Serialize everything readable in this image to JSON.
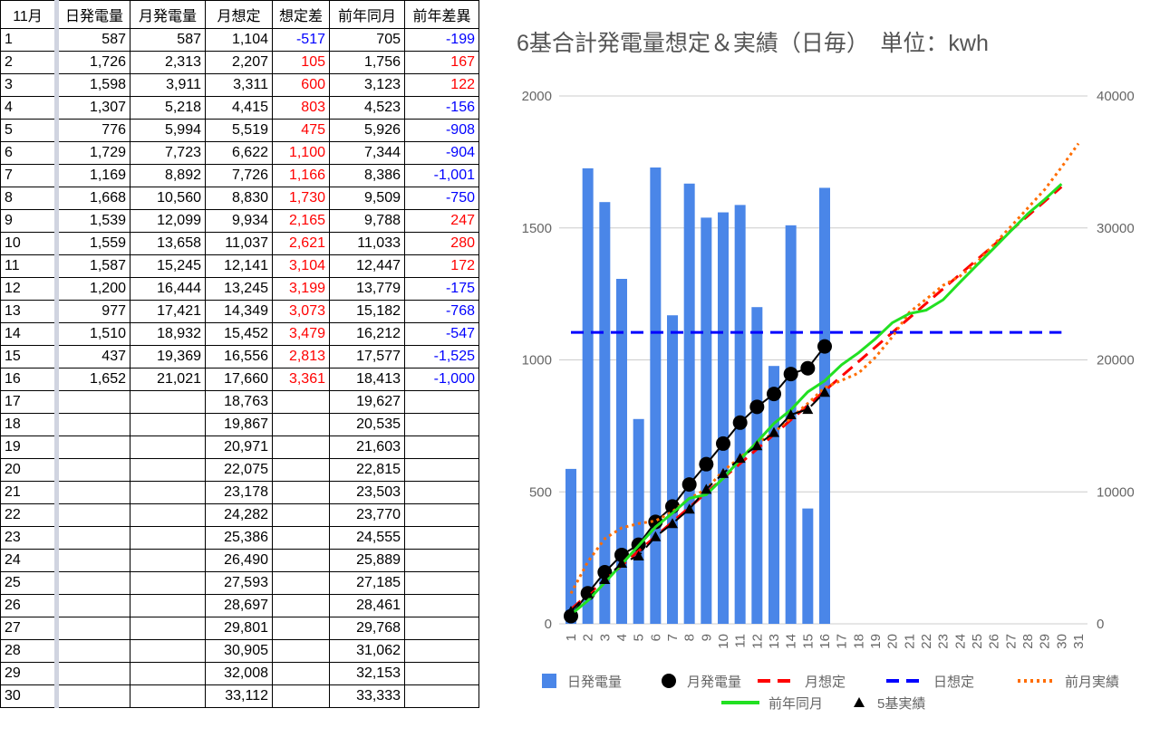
{
  "table": {
    "header": [
      "11月",
      "日発電量",
      "月発電量",
      "月想定",
      "想定差",
      "前年同月",
      "前年差異"
    ],
    "rows": [
      [
        "1",
        "587",
        "587",
        "1,104",
        "-517",
        "705",
        "-199"
      ],
      [
        "2",
        "1,726",
        "2,313",
        "2,207",
        "105",
        "1,756",
        "167"
      ],
      [
        "3",
        "1,598",
        "3,911",
        "3,311",
        "600",
        "3,123",
        "122"
      ],
      [
        "4",
        "1,307",
        "5,218",
        "4,415",
        "803",
        "4,523",
        "-156"
      ],
      [
        "5",
        "776",
        "5,994",
        "5,519",
        "475",
        "5,926",
        "-908"
      ],
      [
        "6",
        "1,729",
        "7,723",
        "6,622",
        "1,100",
        "7,344",
        "-904"
      ],
      [
        "7",
        "1,169",
        "8,892",
        "7,726",
        "1,166",
        "8,386",
        "-1,001"
      ],
      [
        "8",
        "1,668",
        "10,560",
        "8,830",
        "1,730",
        "9,509",
        "-750"
      ],
      [
        "9",
        "1,539",
        "12,099",
        "9,934",
        "2,165",
        "9,788",
        "247"
      ],
      [
        "10",
        "1,559",
        "13,658",
        "11,037",
        "2,621",
        "11,033",
        "280"
      ],
      [
        "11",
        "1,587",
        "15,245",
        "12,141",
        "3,104",
        "12,447",
        "172"
      ],
      [
        "12",
        "1,200",
        "16,444",
        "13,245",
        "3,199",
        "13,779",
        "-175"
      ],
      [
        "13",
        "977",
        "17,421",
        "14,349",
        "3,073",
        "15,182",
        "-768"
      ],
      [
        "14",
        "1,510",
        "18,932",
        "15,452",
        "3,479",
        "16,212",
        "-547"
      ],
      [
        "15",
        "437",
        "19,369",
        "16,556",
        "2,813",
        "17,577",
        "-1,525"
      ],
      [
        "16",
        "1,652",
        "21,021",
        "17,660",
        "3,361",
        "18,413",
        "-1,000"
      ],
      [
        "17",
        null,
        null,
        "18,763",
        null,
        "19,627",
        null
      ],
      [
        "18",
        null,
        null,
        "19,867",
        null,
        "20,535",
        null
      ],
      [
        "19",
        null,
        null,
        "20,971",
        null,
        "21,603",
        null
      ],
      [
        "20",
        null,
        null,
        "22,075",
        null,
        "22,815",
        null
      ],
      [
        "21",
        null,
        null,
        "23,178",
        null,
        "23,503",
        null
      ],
      [
        "22",
        null,
        null,
        "24,282",
        null,
        "23,770",
        null
      ],
      [
        "23",
        null,
        null,
        "25,386",
        null,
        "24,555",
        null
      ],
      [
        "24",
        null,
        null,
        "26,490",
        null,
        "25,889",
        null
      ],
      [
        "25",
        null,
        null,
        "27,593",
        null,
        "27,185",
        null
      ],
      [
        "26",
        null,
        null,
        "28,697",
        null,
        "28,461",
        null
      ],
      [
        "27",
        null,
        null,
        "29,801",
        null,
        "29,768",
        null
      ],
      [
        "28",
        null,
        null,
        "30,905",
        null,
        "31,062",
        null
      ],
      [
        "29",
        null,
        null,
        "32,008",
        null,
        "32,153",
        null
      ],
      [
        "30",
        null,
        null,
        "33,112",
        null,
        "33,333",
        null
      ]
    ]
  },
  "chart_data": {
    "type": "combo",
    "title": "6基合計発電量想定＆実績（日毎）　単位：kwh",
    "categories": [
      "1",
      "2",
      "3",
      "4",
      "5",
      "6",
      "7",
      "8",
      "9",
      "10",
      "11",
      "12",
      "13",
      "14",
      "15",
      "16",
      "17",
      "18",
      "19",
      "20",
      "21",
      "22",
      "23",
      "24",
      "25",
      "26",
      "27",
      "28",
      "29",
      "30",
      "31"
    ],
    "ylim": [
      0,
      2000
    ],
    "yticks": [
      0,
      500,
      1000,
      1500,
      2000
    ],
    "y2lim": [
      0,
      40000
    ],
    "y2ticks": [
      0,
      10000,
      20000,
      30000,
      40000
    ],
    "grid": true,
    "legend": "bottom",
    "series": [
      {
        "name": "日発電量",
        "type": "bar",
        "color": "#4a86e8",
        "values": [
          587,
          1726,
          1598,
          1307,
          776,
          1729,
          1169,
          1668,
          1539,
          1559,
          1587,
          1200,
          977,
          1510,
          437,
          1652,
          null,
          null,
          null,
          null,
          null,
          null,
          null,
          null,
          null,
          null,
          null,
          null,
          null,
          null,
          null
        ]
      },
      {
        "name": "月発電量",
        "type": "line",
        "axis": "y2",
        "color": "#000000",
        "marker": "circle",
        "values": [
          587,
          2313,
          3911,
          5218,
          5994,
          7723,
          8892,
          10560,
          12099,
          13658,
          15245,
          16444,
          17421,
          18932,
          19369,
          21021,
          null,
          null,
          null,
          null,
          null,
          null,
          null,
          null,
          null,
          null,
          null,
          null,
          null,
          null,
          null
        ]
      },
      {
        "name": "月想定",
        "type": "line",
        "axis": "y2",
        "color": "#ff0000",
        "dash": "dashed",
        "values": [
          1104,
          2207,
          3311,
          4415,
          5519,
          6622,
          7726,
          8830,
          9934,
          11037,
          12141,
          13245,
          14349,
          15452,
          16556,
          17660,
          18763,
          19867,
          20971,
          22075,
          23178,
          24282,
          25386,
          26490,
          27593,
          28697,
          29801,
          30905,
          32008,
          33112,
          null
        ]
      },
      {
        "name": "日想定",
        "type": "line",
        "color": "#0000ff",
        "dash": "dashed",
        "values": [
          1104,
          1104,
          1104,
          1104,
          1104,
          1104,
          1104,
          1104,
          1104,
          1104,
          1104,
          1104,
          1104,
          1104,
          1104,
          1104,
          1104,
          1104,
          1104,
          1104,
          1104,
          1104,
          1104,
          1104,
          1104,
          1104,
          1104,
          1104,
          1104,
          1104,
          null
        ]
      },
      {
        "name": "前月実績",
        "type": "line",
        "axis": "y2",
        "color": "#ff6d01",
        "dash": "dotted",
        "values": [
          2300,
          4700,
          6450,
          7270,
          7600,
          7800,
          8500,
          9500,
          10200,
          11600,
          12600,
          13650,
          14500,
          15600,
          16700,
          17900,
          18450,
          19000,
          20200,
          21750,
          23600,
          24600,
          25650,
          26350,
          27400,
          28750,
          30100,
          31500,
          32900,
          34600,
          36400
        ]
      },
      {
        "name": "前年同月",
        "type": "line",
        "axis": "y2",
        "color": "#22e022",
        "values": [
          705,
          1756,
          3123,
          4523,
          5926,
          7344,
          8386,
          9509,
          9788,
          11033,
          12447,
          13779,
          15182,
          16212,
          17577,
          18413,
          19627,
          20535,
          21603,
          22815,
          23503,
          23770,
          24555,
          25889,
          27185,
          28461,
          29768,
          31062,
          32153,
          33333,
          null
        ]
      },
      {
        "name": "5基実績",
        "type": "line",
        "axis": "y2",
        "color": "#000000",
        "dash": "dashed",
        "marker": "triangle",
        "values": [
          960,
          2300,
          3360,
          4600,
          5150,
          6600,
          7600,
          8700,
          10200,
          11400,
          12550,
          13500,
          14500,
          15850,
          16250,
          17550,
          null,
          null,
          null,
          null,
          null,
          null,
          null,
          null,
          null,
          null,
          null,
          null,
          null,
          null,
          null
        ]
      }
    ]
  }
}
